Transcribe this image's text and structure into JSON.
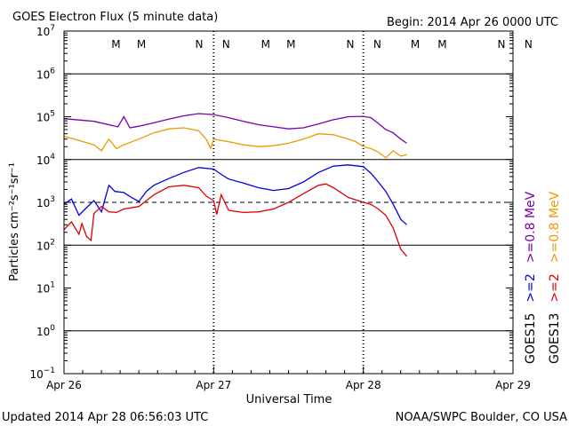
{
  "header": {
    "title": "GOES Electron Flux (5 minute data)",
    "begin": "Begin: 2014 Apr 26 0000 UTC"
  },
  "footer": {
    "updated": "Updated 2014 Apr 28 06:56:03 UTC",
    "credit": "NOAA/SWPC Boulder, CO USA"
  },
  "chart_data": {
    "type": "line",
    "title": "GOES Electron Flux (5 minute data)",
    "xlabel": "Universal Time",
    "ylabel": "Particles cm⁻²s⁻¹sr⁻¹",
    "x_unit": "days since 2014 Apr 26 0000 UTC",
    "xlim": [
      0,
      3
    ],
    "ylim": [
      0.1,
      10000000
    ],
    "y_scale": "log",
    "x_ticks": [
      {
        "x": 0,
        "label": "Apr 26"
      },
      {
        "x": 1,
        "label": "Apr 27"
      },
      {
        "x": 2,
        "label": "Apr 28"
      },
      {
        "x": 3,
        "label": "Apr 29"
      }
    ],
    "y_ticks": [
      {
        "exp": -1,
        "base": "10",
        "sup": "−1"
      },
      {
        "exp": 0,
        "base": "10",
        "sup": "0"
      },
      {
        "exp": 1,
        "base": "10",
        "sup": "1"
      },
      {
        "exp": 2,
        "base": "10",
        "sup": "2"
      },
      {
        "exp": 3,
        "base": "10",
        "sup": "3"
      },
      {
        "exp": 4,
        "base": "10",
        "sup": "4"
      },
      {
        "exp": 5,
        "base": "10",
        "sup": "5"
      },
      {
        "exp": 6,
        "base": "10",
        "sup": "6"
      },
      {
        "exp": 7,
        "base": "10",
        "sup": "7"
      }
    ],
    "threshold": 1000,
    "grid": "horizontal solid at 10^0,10^2,10^4,10^6; dashed at threshold; dotted day separators",
    "legend": {
      "placement": "right",
      "col1": [
        {
          "text": "GOES15",
          "color": "#000000"
        },
        {
          "text": ">=2",
          "color": "#0000dd"
        },
        {
          "text": ">=0.8 MeV",
          "color": "#7700aa"
        }
      ],
      "col2": [
        {
          "text": "GOES13",
          "color": "#000000"
        },
        {
          "text": ">=2",
          "color": "#dd0000"
        },
        {
          "text": ">=0.8 MeV",
          "color": "#ee9900"
        }
      ]
    },
    "markers": [
      {
        "x": 0.34,
        "letter": "M",
        "color": "#dd0000"
      },
      {
        "x": 0.51,
        "letter": "M",
        "color": "#0000dd"
      },
      {
        "x": 0.9,
        "letter": "N",
        "color": "#dd0000"
      },
      {
        "x": 1.08,
        "letter": "N",
        "color": "#0000dd"
      },
      {
        "x": 1.34,
        "letter": "M",
        "color": "#dd0000"
      },
      {
        "x": 1.51,
        "letter": "M",
        "color": "#0000dd"
      },
      {
        "x": 1.91,
        "letter": "N",
        "color": "#dd0000"
      },
      {
        "x": 2.09,
        "letter": "N",
        "color": "#0000dd"
      },
      {
        "x": 2.34,
        "letter": "M",
        "color": "#dd0000"
      },
      {
        "x": 2.52,
        "letter": "M",
        "color": "#0000dd"
      },
      {
        "x": 2.92,
        "letter": "N",
        "color": "#dd0000"
      },
      {
        "x": 3.1,
        "letter": "N",
        "color": "#0000dd"
      }
    ],
    "series": [
      {
        "name": "GOES15 >=0.8 MeV",
        "color": "#7700aa",
        "points": [
          [
            0,
            90000
          ],
          [
            0.2,
            78000
          ],
          [
            0.36,
            58000
          ],
          [
            0.4,
            100000
          ],
          [
            0.44,
            55000
          ],
          [
            0.5,
            60000
          ],
          [
            0.6,
            72000
          ],
          [
            0.7,
            88000
          ],
          [
            0.8,
            105000
          ],
          [
            0.9,
            118000
          ],
          [
            1.0,
            112000
          ],
          [
            1.1,
            95000
          ],
          [
            1.2,
            78000
          ],
          [
            1.3,
            65000
          ],
          [
            1.4,
            58000
          ],
          [
            1.5,
            52000
          ],
          [
            1.6,
            55000
          ],
          [
            1.7,
            68000
          ],
          [
            1.8,
            85000
          ],
          [
            1.9,
            100000
          ],
          [
            2.0,
            102000
          ],
          [
            2.05,
            95000
          ],
          [
            2.1,
            70000
          ],
          [
            2.15,
            50000
          ],
          [
            2.2,
            42000
          ],
          [
            2.25,
            30000
          ],
          [
            2.29,
            24000
          ]
        ]
      },
      {
        "name": "GOES13 >=0.8 MeV",
        "color": "#ee9900",
        "points": [
          [
            0,
            35000
          ],
          [
            0.1,
            28000
          ],
          [
            0.2,
            22000
          ],
          [
            0.25,
            16000
          ],
          [
            0.3,
            30000
          ],
          [
            0.35,
            18000
          ],
          [
            0.4,
            22000
          ],
          [
            0.5,
            30000
          ],
          [
            0.6,
            42000
          ],
          [
            0.7,
            52000
          ],
          [
            0.8,
            55000
          ],
          [
            0.9,
            47000
          ],
          [
            0.95,
            30000
          ],
          [
            0.98,
            18000
          ],
          [
            1.0,
            30000
          ],
          [
            1.1,
            26000
          ],
          [
            1.2,
            22000
          ],
          [
            1.3,
            20000
          ],
          [
            1.4,
            21000
          ],
          [
            1.5,
            24000
          ],
          [
            1.6,
            30000
          ],
          [
            1.7,
            40000
          ],
          [
            1.8,
            38000
          ],
          [
            1.9,
            30000
          ],
          [
            1.95,
            26000
          ],
          [
            2.0,
            20000
          ],
          [
            2.05,
            18000
          ],
          [
            2.1,
            15000
          ],
          [
            2.15,
            11000
          ],
          [
            2.2,
            16000
          ],
          [
            2.25,
            12000
          ],
          [
            2.29,
            13000
          ]
        ]
      },
      {
        "name": "GOES15 >=2",
        "color": "#0000dd",
        "points": [
          [
            0,
            900
          ],
          [
            0.05,
            1200
          ],
          [
            0.1,
            500
          ],
          [
            0.15,
            750
          ],
          [
            0.2,
            1100
          ],
          [
            0.25,
            600
          ],
          [
            0.3,
            2500
          ],
          [
            0.34,
            1800
          ],
          [
            0.4,
            1700
          ],
          [
            0.45,
            1300
          ],
          [
            0.5,
            1050
          ],
          [
            0.55,
            1800
          ],
          [
            0.6,
            2500
          ],
          [
            0.7,
            3600
          ],
          [
            0.8,
            5000
          ],
          [
            0.9,
            6500
          ],
          [
            1.0,
            6000
          ],
          [
            1.05,
            4500
          ],
          [
            1.1,
            3500
          ],
          [
            1.2,
            2800
          ],
          [
            1.3,
            2200
          ],
          [
            1.4,
            1900
          ],
          [
            1.5,
            2100
          ],
          [
            1.6,
            3000
          ],
          [
            1.7,
            5000
          ],
          [
            1.8,
            7000
          ],
          [
            1.9,
            7500
          ],
          [
            2.0,
            6800
          ],
          [
            2.05,
            4800
          ],
          [
            2.1,
            3000
          ],
          [
            2.15,
            1800
          ],
          [
            2.2,
            900
          ],
          [
            2.25,
            400
          ],
          [
            2.29,
            300
          ]
        ]
      },
      {
        "name": "GOES13 >=2",
        "color": "#dd0000",
        "points": [
          [
            0,
            230
          ],
          [
            0.05,
            350
          ],
          [
            0.1,
            180
          ],
          [
            0.12,
            320
          ],
          [
            0.15,
            160
          ],
          [
            0.18,
            130
          ],
          [
            0.2,
            550
          ],
          [
            0.25,
            800
          ],
          [
            0.3,
            600
          ],
          [
            0.35,
            580
          ],
          [
            0.4,
            700
          ],
          [
            0.5,
            800
          ],
          [
            0.6,
            1500
          ],
          [
            0.7,
            2300
          ],
          [
            0.8,
            2500
          ],
          [
            0.9,
            2200
          ],
          [
            0.95,
            1400
          ],
          [
            1.0,
            1100
          ],
          [
            1.02,
            520
          ],
          [
            1.05,
            1500
          ],
          [
            1.1,
            650
          ],
          [
            1.2,
            580
          ],
          [
            1.3,
            600
          ],
          [
            1.4,
            700
          ],
          [
            1.5,
            1000
          ],
          [
            1.6,
            1600
          ],
          [
            1.7,
            2500
          ],
          [
            1.75,
            2700
          ],
          [
            1.8,
            2200
          ],
          [
            1.9,
            1300
          ],
          [
            2.0,
            1000
          ],
          [
            2.05,
            900
          ],
          [
            2.1,
            700
          ],
          [
            2.15,
            500
          ],
          [
            2.2,
            250
          ],
          [
            2.25,
            80
          ],
          [
            2.29,
            55
          ]
        ]
      }
    ]
  }
}
